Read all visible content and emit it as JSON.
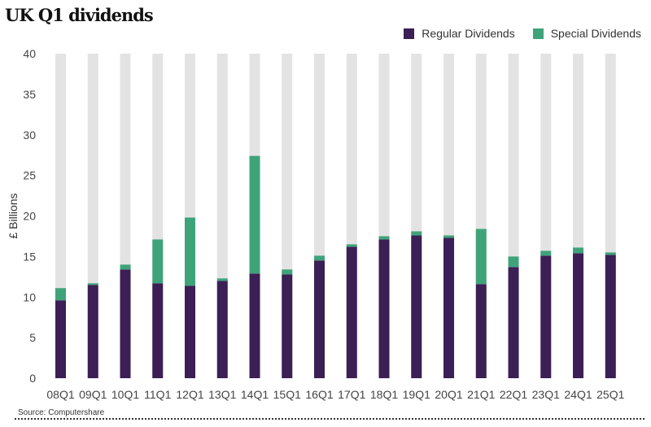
{
  "chart_data": {
    "type": "bar",
    "stacked": true,
    "title": "UK Q1 dividends",
    "ylabel": "£ Billions",
    "xlabel": "",
    "ylim": [
      0,
      40
    ],
    "yticks": [
      0,
      5,
      10,
      15,
      20,
      25,
      30,
      35,
      40
    ],
    "categories": [
      "08Q1",
      "09Q1",
      "10Q1",
      "11Q1",
      "12Q1",
      "13Q1",
      "14Q1",
      "15Q1",
      "16Q1",
      "17Q1",
      "18Q1",
      "19Q1",
      "20Q1",
      "21Q1",
      "22Q1",
      "23Q1",
      "24Q1",
      "25Q1"
    ],
    "series": [
      {
        "name": "Regular Dividends",
        "color": "#3b1f55",
        "values": [
          9.6,
          11.5,
          13.4,
          11.7,
          11.4,
          12.0,
          12.9,
          12.8,
          14.5,
          16.2,
          17.1,
          17.6,
          17.3,
          11.6,
          13.7,
          15.1,
          15.4,
          15.2
        ]
      },
      {
        "name": "Special Dividends",
        "color": "#3fa37a",
        "values": [
          1.5,
          0.2,
          0.6,
          5.4,
          8.4,
          0.3,
          14.5,
          0.6,
          0.6,
          0.3,
          0.4,
          0.5,
          0.3,
          6.8,
          1.3,
          0.6,
          0.7,
          0.3
        ]
      }
    ],
    "background_bar_color": "#e3e3e3",
    "legend_position": "top-right"
  },
  "source": "Source: Computershare"
}
